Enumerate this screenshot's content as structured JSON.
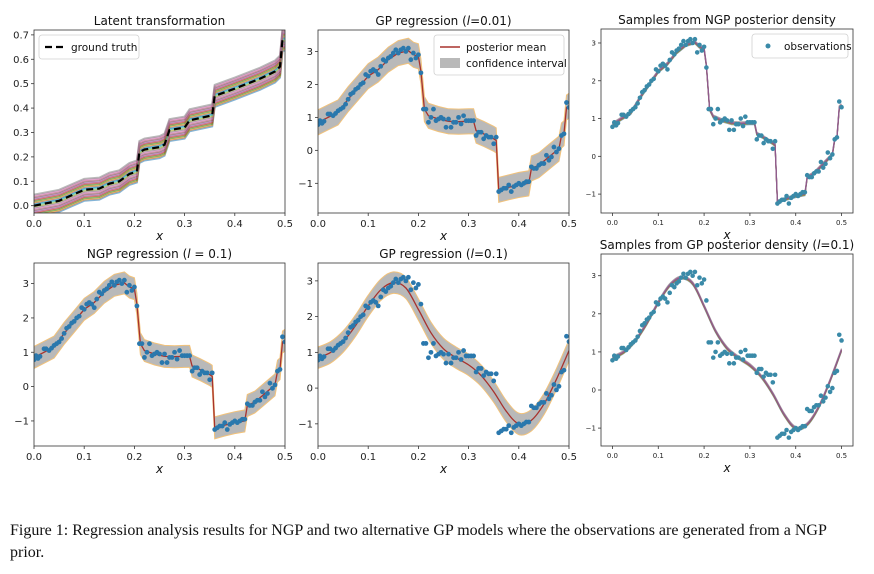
{
  "figure": {
    "caption_label": "Figure 1:",
    "caption_text": "Regression analysis results for NGP and two alternative GP models where the observations are generated from a NGP prior."
  },
  "colors": {
    "observations": "#2a78ad",
    "posterior_mean": "#a8322d",
    "confidence_band": "#b9b9b9",
    "band_edge": "#f2c27a",
    "ground_truth": "#000000",
    "samples": [
      "#1f77b4",
      "#ff7f0e",
      "#2ca02c",
      "#d62728",
      "#9467bd",
      "#8c564b",
      "#e377c2",
      "#7f7f7f",
      "#bcbd22",
      "#17becf"
    ]
  },
  "observations": [
    [
      0,
      0.78
    ],
    [
      0.004,
      0.9
    ],
    [
      0.008,
      0.82
    ],
    [
      0.012,
      0.88
    ],
    [
      0.02,
      1.1
    ],
    [
      0.024,
      1.1
    ],
    [
      0.03,
      1.05
    ],
    [
      0.035,
      1.12
    ],
    [
      0.04,
      1.2
    ],
    [
      0.045,
      1.25
    ],
    [
      0.05,
      1.3
    ],
    [
      0.055,
      1.4
    ],
    [
      0.06,
      1.55
    ],
    [
      0.065,
      1.7
    ],
    [
      0.07,
      1.75
    ],
    [
      0.075,
      1.85
    ],
    [
      0.08,
      1.9
    ],
    [
      0.085,
      2.0
    ],
    [
      0.09,
      2.05
    ],
    [
      0.095,
      2.3
    ],
    [
      0.1,
      2.25
    ],
    [
      0.105,
      2.4
    ],
    [
      0.11,
      2.45
    ],
    [
      0.115,
      2.4
    ],
    [
      0.12,
      2.3
    ],
    [
      0.125,
      2.55
    ],
    [
      0.13,
      2.75
    ],
    [
      0.135,
      2.7
    ],
    [
      0.14,
      2.8
    ],
    [
      0.145,
      2.85
    ],
    [
      0.15,
      2.95
    ],
    [
      0.155,
      3.05
    ],
    [
      0.16,
      2.95
    ],
    [
      0.165,
      3.05
    ],
    [
      0.17,
      3.1
    ],
    [
      0.175,
      3.0
    ],
    [
      0.18,
      3.1
    ],
    [
      0.185,
      2.75
    ],
    [
      0.19,
      2.95
    ],
    [
      0.195,
      2.8
    ],
    [
      0.2,
      2.9
    ],
    [
      0.205,
      2.35
    ],
    [
      0.21,
      1.25
    ],
    [
      0.215,
      1.25
    ],
    [
      0.22,
      0.85
    ],
    [
      0.225,
      1.0
    ],
    [
      0.23,
      1.25
    ],
    [
      0.235,
      0.9
    ],
    [
      0.24,
      0.95
    ],
    [
      0.245,
      1.0
    ],
    [
      0.25,
      0.95
    ],
    [
      0.255,
      0.7
    ],
    [
      0.26,
      0.95
    ],
    [
      0.265,
      0.7
    ],
    [
      0.27,
      0.85
    ],
    [
      0.275,
      0.85
    ],
    [
      0.28,
      1.0
    ],
    [
      0.285,
      0.8
    ],
    [
      0.29,
      1.05
    ],
    [
      0.295,
      0.9
    ],
    [
      0.3,
      0.9
    ],
    [
      0.305,
      0.9
    ],
    [
      0.31,
      0.9
    ],
    [
      0.315,
      0.45
    ],
    [
      0.32,
      0.55
    ],
    [
      0.325,
      0.55
    ],
    [
      0.33,
      0.35
    ],
    [
      0.335,
      0.45
    ],
    [
      0.34,
      0.4
    ],
    [
      0.345,
      0.4
    ],
    [
      0.35,
      0.2
    ],
    [
      0.355,
      0.4
    ],
    [
      0.36,
      -1.25
    ],
    [
      0.365,
      -1.2
    ],
    [
      0.37,
      -1.15
    ],
    [
      0.375,
      -1.15
    ],
    [
      0.38,
      -1.05
    ],
    [
      0.385,
      -1.25
    ],
    [
      0.39,
      -1.1
    ],
    [
      0.395,
      -1.05
    ],
    [
      0.4,
      -1.0
    ],
    [
      0.405,
      -1.05
    ],
    [
      0.41,
      -1.0
    ],
    [
      0.415,
      -0.95
    ],
    [
      0.42,
      -0.95
    ],
    [
      0.425,
      -0.5
    ],
    [
      0.43,
      -0.55
    ],
    [
      0.435,
      -0.55
    ],
    [
      0.44,
      -0.45
    ],
    [
      0.445,
      -0.4
    ],
    [
      0.45,
      -0.4
    ],
    [
      0.455,
      -0.15
    ],
    [
      0.46,
      -0.3
    ],
    [
      0.465,
      -0.2
    ],
    [
      0.47,
      0.1
    ],
    [
      0.475,
      -0.05
    ],
    [
      0.48,
      0.05
    ],
    [
      0.485,
      0.45
    ],
    [
      0.49,
      0.5
    ],
    [
      0.495,
      1.45
    ],
    [
      0.5,
      1.3
    ]
  ],
  "ngp_mean": [
    [
      0,
      0.85
    ],
    [
      0.02,
      1.0
    ],
    [
      0.04,
      1.15
    ],
    [
      0.06,
      1.55
    ],
    [
      0.08,
      1.9
    ],
    [
      0.1,
      2.25
    ],
    [
      0.12,
      2.45
    ],
    [
      0.14,
      2.75
    ],
    [
      0.16,
      2.95
    ],
    [
      0.18,
      3.02
    ],
    [
      0.19,
      2.9
    ],
    [
      0.2,
      2.85
    ],
    [
      0.205,
      2.4
    ],
    [
      0.212,
      1.25
    ],
    [
      0.22,
      1.05
    ],
    [
      0.24,
      0.95
    ],
    [
      0.26,
      0.88
    ],
    [
      0.28,
      0.87
    ],
    [
      0.3,
      0.88
    ],
    [
      0.31,
      0.88
    ],
    [
      0.315,
      0.6
    ],
    [
      0.33,
      0.5
    ],
    [
      0.35,
      0.35
    ],
    [
      0.355,
      0.3
    ],
    [
      0.36,
      -1.2
    ],
    [
      0.38,
      -1.12
    ],
    [
      0.4,
      -1.05
    ],
    [
      0.42,
      -1.0
    ],
    [
      0.425,
      -0.55
    ],
    [
      0.44,
      -0.45
    ],
    [
      0.46,
      -0.2
    ],
    [
      0.48,
      0.05
    ],
    [
      0.485,
      0.45
    ],
    [
      0.49,
      0.52
    ],
    [
      0.495,
      1.3
    ],
    [
      0.5,
      1.35
    ]
  ],
  "gp01_mean": [
    [
      0,
      0.85
    ],
    [
      0.025,
      1.0
    ],
    [
      0.05,
      1.3
    ],
    [
      0.075,
      1.75
    ],
    [
      0.1,
      2.3
    ],
    [
      0.125,
      2.75
    ],
    [
      0.15,
      2.95
    ],
    [
      0.175,
      2.8
    ],
    [
      0.2,
      2.2
    ],
    [
      0.225,
      1.55
    ],
    [
      0.25,
      1.1
    ],
    [
      0.275,
      0.85
    ],
    [
      0.3,
      0.65
    ],
    [
      0.325,
      0.35
    ],
    [
      0.35,
      -0.1
    ],
    [
      0.375,
      -0.65
    ],
    [
      0.4,
      -1.0
    ],
    [
      0.425,
      -0.9
    ],
    [
      0.45,
      -0.45
    ],
    [
      0.475,
      0.25
    ],
    [
      0.5,
      1.05
    ]
  ],
  "chart_data": [
    {
      "type": "line",
      "title": {
        "pre": "Latent transformation",
        "var": "",
        "post": ""
      },
      "xlabel": "x",
      "xlim": [
        0,
        0.5
      ],
      "ylim": [
        -0.03,
        0.72
      ],
      "xticks": [
        "0.0",
        "0.1",
        "0.2",
        "0.3",
        "0.4",
        "0.5"
      ],
      "yticks": [
        "0.0",
        "0.1",
        "0.2",
        "0.3",
        "0.4",
        "0.5",
        "0.6",
        "0.7"
      ],
      "legend": {
        "placement": "upper-left",
        "entries": [
          "ground truth"
        ]
      },
      "ground_truth": [
        [
          0,
          0
        ],
        [
          0.05,
          0.02
        ],
        [
          0.1,
          0.065
        ],
        [
          0.13,
          0.07
        ],
        [
          0.15,
          0.09
        ],
        [
          0.17,
          0.1
        ],
        [
          0.19,
          0.13
        ],
        [
          0.205,
          0.14
        ],
        [
          0.21,
          0.22
        ],
        [
          0.22,
          0.23
        ],
        [
          0.25,
          0.24
        ],
        [
          0.26,
          0.25
        ],
        [
          0.265,
          0.28
        ],
        [
          0.27,
          0.31
        ],
        [
          0.3,
          0.32
        ],
        [
          0.31,
          0.35
        ],
        [
          0.355,
          0.37
        ],
        [
          0.36,
          0.45
        ],
        [
          0.4,
          0.48
        ],
        [
          0.45,
          0.52
        ],
        [
          0.48,
          0.55
        ],
        [
          0.49,
          0.57
        ],
        [
          0.495,
          0.68
        ],
        [
          0.5,
          0.68
        ]
      ],
      "samples_band": 0.045
    },
    {
      "type": "line",
      "title": {
        "pre": "GP regression (",
        "var": "l",
        "post": "=0.01)"
      },
      "xlabel": "x",
      "xlim": [
        0,
        0.5
      ],
      "ylim": [
        -1.9,
        3.65
      ],
      "xticks": [
        "0.0",
        "0.1",
        "0.2",
        "0.3",
        "0.4",
        "0.5"
      ],
      "yticks": [
        "−1",
        "0",
        "1",
        "2",
        "3"
      ],
      "legend": {
        "placement": "upper-right",
        "entries": [
          "posterior mean",
          "confidence interval"
        ]
      },
      "mean": "ngp_mean",
      "band": 0.38
    },
    {
      "type": "scatter",
      "title": {
        "pre": "Samples from NGP posterior density",
        "var": "",
        "post": ""
      },
      "xlabel": "x",
      "xlim": [
        -0.025,
        0.525
      ],
      "ylim": [
        -1.5,
        3.37
      ],
      "xticks": [
        "0.0",
        "0.1",
        "0.2",
        "0.3",
        "0.4",
        "0.5"
      ],
      "yticks": [
        "−1",
        "0",
        "1",
        "2",
        "3"
      ],
      "legend": {
        "placement": "upper-right",
        "entries": [
          "observations"
        ]
      },
      "samples_of": "ngp_mean"
    },
    {
      "type": "line",
      "title": {
        "pre": "NGP regression (",
        "var": "l",
        "post": " = 0.1)"
      },
      "xlabel": "x",
      "xlim": [
        0,
        0.5
      ],
      "ylim": [
        -1.73,
        3.6
      ],
      "xticks": [
        "0.0",
        "0.1",
        "0.2",
        "0.3",
        "0.4",
        "0.5"
      ],
      "yticks": [
        "−1",
        "0",
        "1",
        "2",
        "3"
      ],
      "mean": "ngp_mean",
      "band": 0.32
    },
    {
      "type": "line",
      "title": {
        "pre": "GP regression (",
        "var": "l",
        "post": "=0.1)"
      },
      "xlabel": "x",
      "xlim": [
        0,
        0.5
      ],
      "ylim": [
        -1.62,
        3.5
      ],
      "xticks": [
        "0.0",
        "0.1",
        "0.2",
        "0.3",
        "0.4",
        "0.5"
      ],
      "yticks": [
        "−1",
        "0",
        "1",
        "2",
        "3"
      ],
      "mean": "gp01_mean",
      "band": 0.3,
      "smooth": true
    },
    {
      "type": "scatter",
      "title": {
        "pre": "Samples from GP posterior density (",
        "var": "l",
        "post": "=0.1)"
      },
      "xlabel": "x",
      "xlim": [
        -0.025,
        0.525
      ],
      "ylim": [
        -1.47,
        3.57
      ],
      "xticks": [
        "0.0",
        "0.1",
        "0.2",
        "0.3",
        "0.4",
        "0.5"
      ],
      "yticks": [
        "−1",
        "0",
        "1",
        "2",
        "3"
      ],
      "samples_of": "gp01_mean",
      "smooth": true
    }
  ]
}
